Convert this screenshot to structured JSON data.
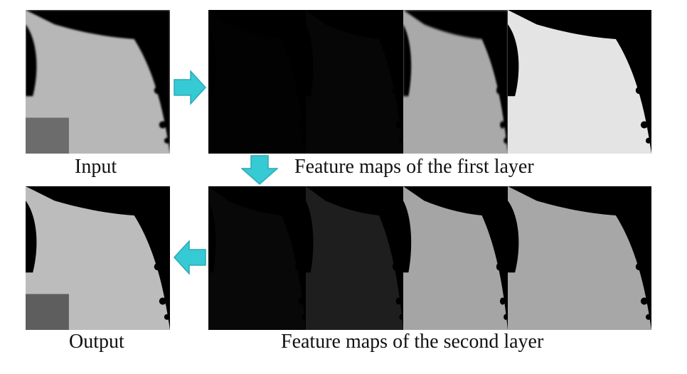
{
  "labels": {
    "input": "Input",
    "output": "Output",
    "first_layer": "Feature maps of the first layer",
    "second_layer": "Feature maps of the second layer"
  },
  "colors": {
    "arrow": "#36CAD4",
    "arrow_edge": "#2AAAB3",
    "wing_vein": "#1e1e1e",
    "wing_cell_light": "#bdbdbd",
    "wing_cell_mid": "#9a9a9a",
    "background_gray": "#6e6e6e"
  },
  "images": {
    "input": "butterfly-wing-grayscale-blurred",
    "output": "butterfly-wing-grayscale-restored",
    "first_layer_maps": [
      "feature-map-dark-edges",
      "feature-map-dark-veins",
      "feature-map-gray-soft",
      "feature-map-high-contrast"
    ],
    "second_layer_maps": [
      "feature-map-dark-edges",
      "feature-map-dark-ridges",
      "feature-map-contrast",
      "feature-map-white-edges"
    ]
  }
}
